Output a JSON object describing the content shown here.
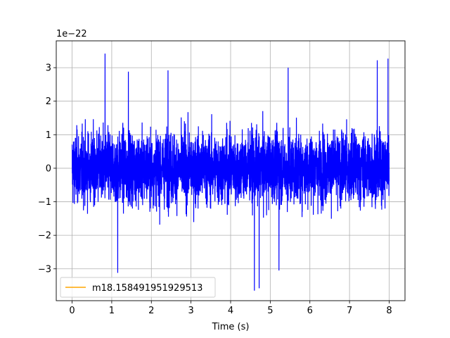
{
  "chart_data": {
    "type": "line",
    "xlabel": "Time (s)",
    "ylabel": "",
    "offset_text": "1e−22",
    "xlim": [
      -0.4,
      8.4
    ],
    "ylim": [
      -3.95,
      3.8
    ],
    "x_ticks": [
      0,
      1,
      2,
      3,
      4,
      5,
      6,
      7,
      8
    ],
    "x_tick_labels": [
      "0",
      "1",
      "2",
      "3",
      "4",
      "5",
      "6",
      "7",
      "8"
    ],
    "y_ticks": [
      -3,
      -2,
      -1,
      0,
      1,
      2,
      3
    ],
    "y_tick_labels": [
      "−3",
      "−2",
      "−1",
      "0",
      "1",
      "2",
      "3"
    ],
    "grid": true,
    "legend_position": "lower-left",
    "series": [
      {
        "name": "",
        "color": "#0000ff",
        "description_of_extent": "dense noise signal from t=0 to t=8, amplitude mostly within ±1.5, peaks near +3.4 and −3.6",
        "x_start": 0,
        "x_end": 8,
        "notable_peaks": [
          {
            "x": 0.83,
            "y": 3.42
          },
          {
            "x": 1.15,
            "y": -3.12
          },
          {
            "x": 1.42,
            "y": 2.88
          },
          {
            "x": 2.42,
            "y": 2.92
          },
          {
            "x": 4.6,
            "y": -3.65
          },
          {
            "x": 4.72,
            "y": -3.58
          },
          {
            "x": 5.22,
            "y": -3.05
          },
          {
            "x": 7.97,
            "y": 3.27
          },
          {
            "x": 7.7,
            "y": 3.22
          },
          {
            "x": 5.45,
            "y": 3.0
          }
        ]
      },
      {
        "name": "m18.158491951929513",
        "color": "#ffa500",
        "values_shown": "legend only"
      }
    ]
  }
}
